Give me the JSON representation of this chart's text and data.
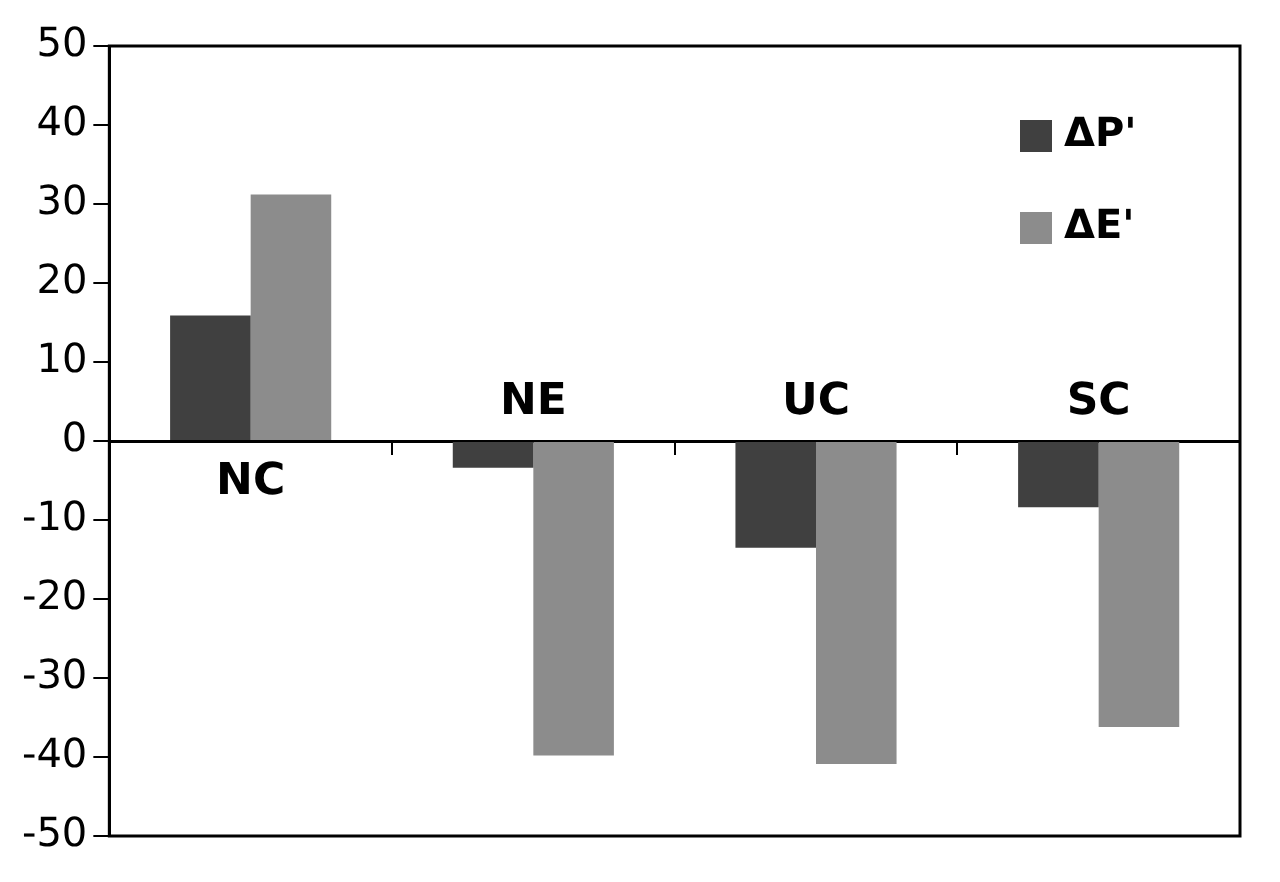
{
  "chart_data": {
    "type": "bar",
    "categories": [
      "NC",
      "NE",
      "UC",
      "SC"
    ],
    "series": [
      {
        "name": "ΔP'",
        "color": "#404040",
        "values": [
          15.9,
          -3.4,
          -13.5,
          -8.4
        ]
      },
      {
        "name": "ΔE'",
        "color": "#8c8c8c",
        "values": [
          31.2,
          -39.8,
          -40.9,
          -36.2
        ]
      }
    ],
    "ylim": [
      -50,
      50
    ],
    "yticks": [
      -50,
      -40,
      -30,
      -20,
      -10,
      0,
      10,
      20,
      30,
      40,
      50
    ],
    "grid": false,
    "legend": "top right"
  }
}
